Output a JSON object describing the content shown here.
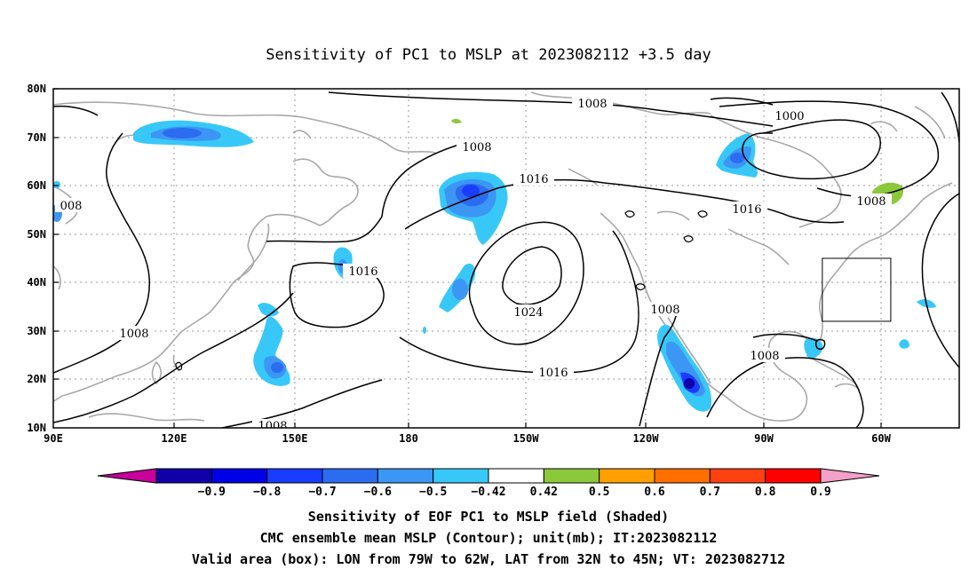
{
  "title": "Sensitivity of PC1 to MSLP at 2023082112 +3.5 day",
  "lat_labels": [
    "80N",
    "70N",
    "60N",
    "50N",
    "40N",
    "30N",
    "20N",
    "10N"
  ],
  "lon_labels": [
    "90E",
    "120E",
    "150E",
    "180",
    "150W",
    "120W",
    "90W",
    "60W"
  ],
  "contour_labels": {
    "c1008_top": "1008",
    "c1000": "1000",
    "c1008_npac": "1008",
    "c1016_npac": "1016",
    "c1016_canada": "1016",
    "c1008_atl": "1008",
    "c1008_west": "008",
    "c1016_wpac": "1016",
    "c1024": "1024",
    "c1008_baja": "1008",
    "c1008_china": "1008",
    "c1016_south": "1016",
    "c1008_gulf": "1008",
    "c1008_bottom": "1008"
  },
  "colorbar": {
    "colors": [
      "#c8009c",
      "#1000a8",
      "#0000e6",
      "#1a3cff",
      "#2c6cf0",
      "#3c96f4",
      "#38c8f8",
      "#ffffff",
      "#8cc83c",
      "#ffa000",
      "#ff7000",
      "#ff4010",
      "#ff0000",
      "#f4a0c8"
    ],
    "labels": [
      "-0.9",
      "-0.8",
      "-0.7",
      "-0.6",
      "-0.5",
      "-0.42",
      "0.42",
      "0.5",
      "0.6",
      "0.7",
      "0.8",
      "0.9"
    ]
  },
  "valid_box": {
    "lon_w": -79,
    "lon_e": -62,
    "lat_s": 32,
    "lat_n": 45
  },
  "captions": {
    "line1": "Sensitivity of EOF PC1 to MSLP field (Shaded)",
    "line2": "CMC ensemble mean MSLP (Contour); unit(mb); IT:2023082112",
    "line3": "Valid area (box): LON from 79W to 62W, LAT from 32N to 45N; VT: 2023082712"
  }
}
